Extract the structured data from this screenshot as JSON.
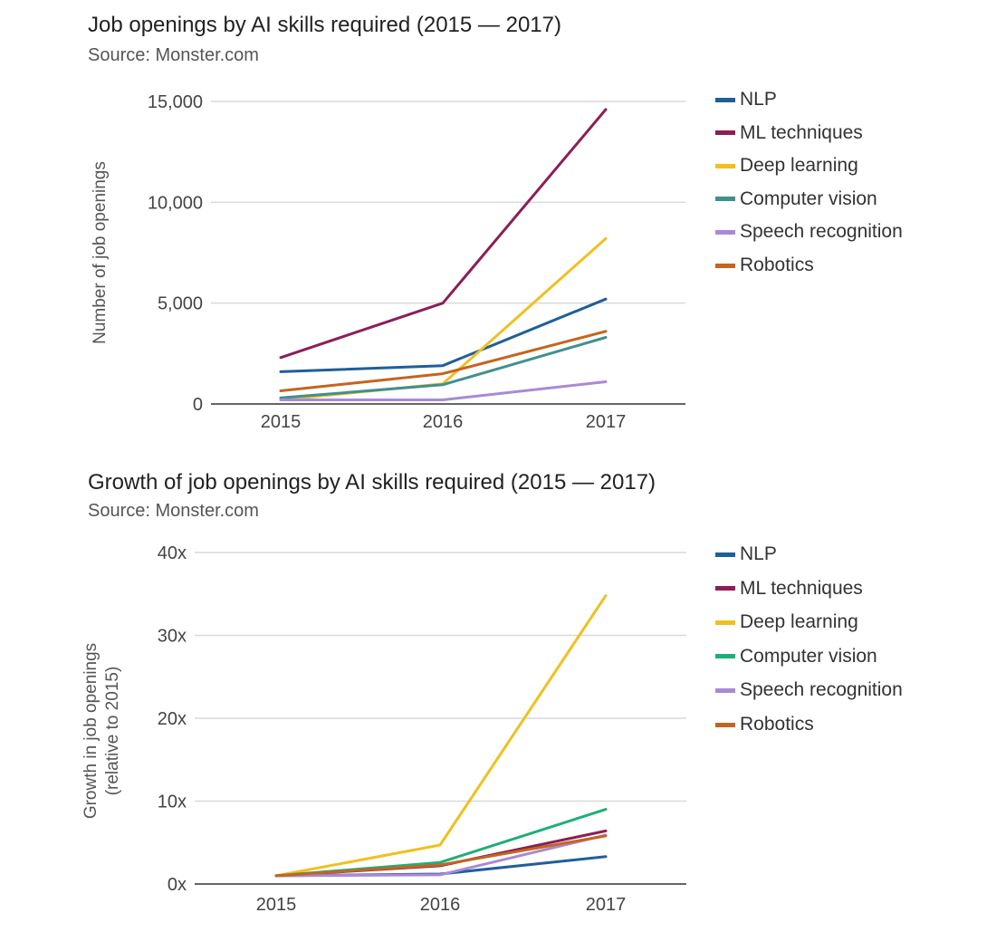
{
  "chart_data": [
    {
      "type": "line",
      "title": "Job openings by AI skills required (2015 — 2017)",
      "subtitle": "Source: Monster.com",
      "xlabel": "",
      "ylabel": "Number of job openings",
      "x": [
        "2015",
        "2016",
        "2017"
      ],
      "ylim": [
        0,
        15000
      ],
      "yticks": [
        0,
        5000,
        10000,
        15000
      ],
      "ytick_labels": [
        "0",
        "5,000",
        "10,000",
        "15,000"
      ],
      "grid": true,
      "legend": "right",
      "series": [
        {
          "name": "NLP",
          "color": "#1f5f99",
          "values": [
            1600,
            1900,
            5200
          ]
        },
        {
          "name": "ML techniques",
          "color": "#8b1f55",
          "values": [
            2300,
            5000,
            14600
          ]
        },
        {
          "name": "Deep learning",
          "color": "#f0c020",
          "values": [
            200,
            1000,
            8200
          ]
        },
        {
          "name": "Computer vision",
          "color": "#3f9090",
          "values": [
            300,
            950,
            3300
          ]
        },
        {
          "name": "Speech recognition",
          "color": "#a88ad6",
          "values": [
            200,
            200,
            1100
          ]
        },
        {
          "name": "Robotics",
          "color": "#c4651f",
          "values": [
            650,
            1500,
            3600
          ]
        }
      ]
    },
    {
      "type": "line",
      "title": "Growth of job openings by AI skills required (2015 — 2017)",
      "subtitle": "Source: Monster.com",
      "xlabel": "",
      "ylabel": "Growth in job openings (relative to 2015)",
      "ylabel_lines": [
        "Growth in job openings",
        "(relative to 2015)"
      ],
      "x": [
        "2015",
        "2016",
        "2017"
      ],
      "ylim": [
        0,
        40
      ],
      "yticks": [
        0,
        10,
        20,
        30,
        40
      ],
      "ytick_labels": [
        "0x",
        "10x",
        "20x",
        "30x",
        "40x"
      ],
      "grid": true,
      "legend": "right",
      "series": [
        {
          "name": "NLP",
          "color": "#1f5f99",
          "values": [
            1,
            1.2,
            3.3
          ]
        },
        {
          "name": "ML techniques",
          "color": "#8b1f55",
          "values": [
            1,
            2.2,
            6.4
          ]
        },
        {
          "name": "Deep learning",
          "color": "#f0c020",
          "values": [
            1,
            4.7,
            34.8
          ]
        },
        {
          "name": "Computer vision",
          "color": "#1fae78",
          "values": [
            1,
            2.6,
            9
          ]
        },
        {
          "name": "Speech recognition",
          "color": "#a88ad6",
          "values": [
            1,
            1.1,
            5.9
          ]
        },
        {
          "name": "Robotics",
          "color": "#c4651f",
          "values": [
            1,
            2.3,
            5.8
          ]
        }
      ]
    }
  ]
}
